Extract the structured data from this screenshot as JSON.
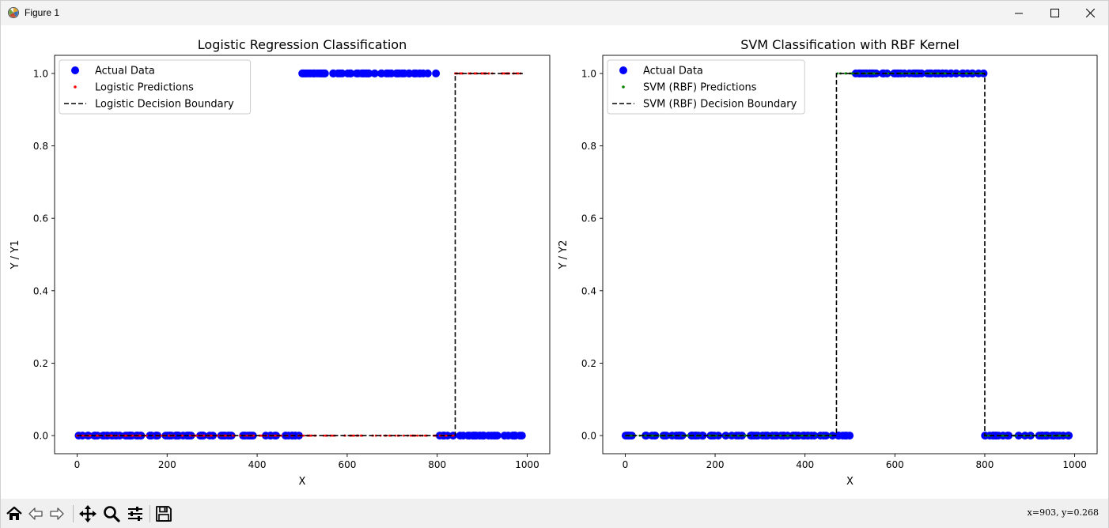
{
  "window": {
    "title": "Figure 1"
  },
  "toolbar": {
    "buttons": [
      "home-icon",
      "back-icon",
      "forward-icon",
      "pan-icon",
      "zoom-icon",
      "configure-subplots-icon",
      "save-icon"
    ],
    "coords": "x=903, y=0.268"
  },
  "chart_data": [
    {
      "type": "scatter",
      "title": "Logistic Regression Classification",
      "xlabel": "X",
      "ylabel": "Y / Y1",
      "xlim": [
        -50,
        1050
      ],
      "ylim": [
        -0.05,
        1.05
      ],
      "xticks": [
        "0",
        "200",
        "400",
        "600",
        "800",
        "1000"
      ],
      "yticks": [
        "0.0",
        "0.2",
        "0.4",
        "0.6",
        "0.8",
        "1.0"
      ],
      "legend_position": "top-left",
      "series": [
        {
          "name": "Actual Data",
          "color": "#0000ff",
          "marker": "circle",
          "segments": [
            {
              "x_from": 0,
              "x_to": 500,
              "y": 0
            },
            {
              "x_from": 500,
              "x_to": 800,
              "y": 1
            },
            {
              "x_from": 800,
              "x_to": 990,
              "y": 0
            }
          ]
        },
        {
          "name": "Logistic Predictions",
          "color": "#ff0000",
          "marker": "dot",
          "segments": [
            {
              "x_from": 0,
              "x_to": 840,
              "y": 0
            },
            {
              "x_from": 840,
              "x_to": 990,
              "y": 1
            }
          ]
        },
        {
          "name": "Logistic Decision Boundary",
          "color": "#000000",
          "style": "dashed",
          "points": [
            [
              0,
              0
            ],
            [
              840,
              0
            ],
            [
              840,
              1
            ],
            [
              990,
              1
            ]
          ]
        }
      ]
    },
    {
      "type": "scatter",
      "title": "SVM Classification with RBF Kernel",
      "xlabel": "X",
      "ylabel": "Y / Y2",
      "xlim": [
        -50,
        1050
      ],
      "ylim": [
        -0.05,
        1.05
      ],
      "xticks": [
        "0",
        "200",
        "400",
        "600",
        "800",
        "1000"
      ],
      "yticks": [
        "0.0",
        "0.2",
        "0.4",
        "0.6",
        "0.8",
        "1.0"
      ],
      "legend_position": "top-left",
      "series": [
        {
          "name": "Actual Data",
          "color": "#0000ff",
          "marker": "circle",
          "segments": [
            {
              "x_from": 0,
              "x_to": 500,
              "y": 0
            },
            {
              "x_from": 500,
              "x_to": 800,
              "y": 1
            },
            {
              "x_from": 800,
              "x_to": 990,
              "y": 0
            }
          ]
        },
        {
          "name": "SVM (RBF) Predictions",
          "color": "#008000",
          "marker": "dot",
          "segments": [
            {
              "x_from": 0,
              "x_to": 470,
              "y": 0
            },
            {
              "x_from": 470,
              "x_to": 800,
              "y": 1
            },
            {
              "x_from": 800,
              "x_to": 990,
              "y": 0
            }
          ]
        },
        {
          "name": "SVM (RBF) Decision Boundary",
          "color": "#000000",
          "style": "dashed",
          "points": [
            [
              0,
              0
            ],
            [
              470,
              0
            ],
            [
              470,
              1
            ],
            [
              800,
              1
            ],
            [
              800,
              0
            ],
            [
              990,
              0
            ]
          ]
        }
      ]
    }
  ]
}
